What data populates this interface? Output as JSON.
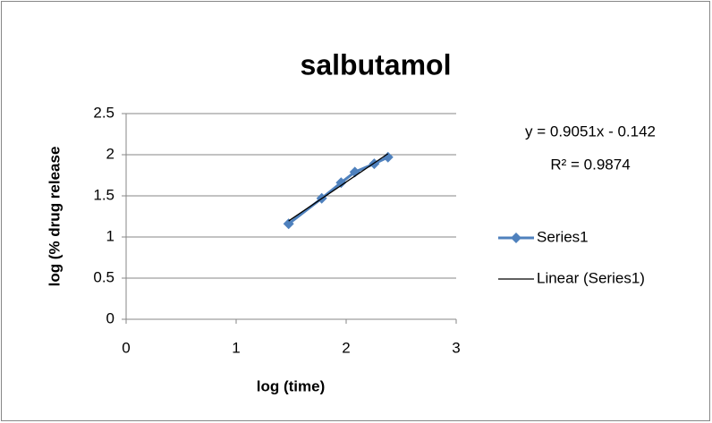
{
  "chart_data": {
    "type": "scatter",
    "title": "salbutamol",
    "x_label": "log (time)",
    "y_label": "log (% drug release",
    "series": [
      {
        "name": "Series1",
        "color": "#4f81bd",
        "x": [
          1.477,
          1.778,
          1.954,
          2.079,
          2.255,
          2.38
        ],
        "values": [
          1.16,
          1.47,
          1.66,
          1.79,
          1.89,
          1.97
        ]
      }
    ],
    "trendline": {
      "name": "Linear (Series1)",
      "color": "#000000",
      "slope": 0.9051,
      "intercept": -0.142,
      "equation": "y = 0.9051x - 0.142",
      "r_squared": "R² = 0.9874"
    },
    "xlim": [
      0,
      3
    ],
    "xticks": [
      0,
      1,
      2,
      3
    ],
    "ylim": [
      0,
      2.5
    ],
    "yticks": [
      0,
      0.5,
      1,
      1.5,
      2,
      2.5
    ],
    "grid": true,
    "legend": "right"
  }
}
